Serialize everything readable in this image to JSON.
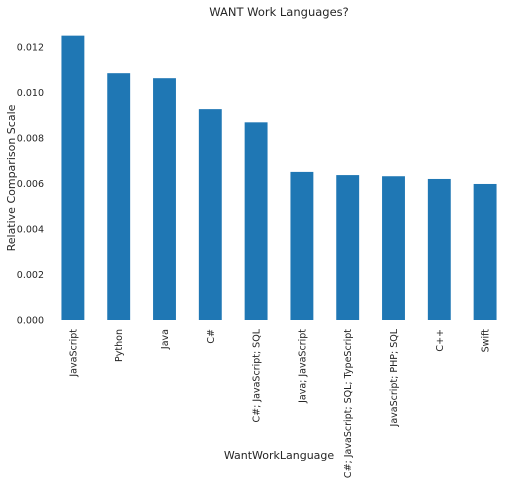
{
  "chart_data": {
    "type": "bar",
    "title": "WANT Work Languages?",
    "xlabel": "WantWorkLanguage",
    "ylabel": "Relative Comparison Scale",
    "ylim": [
      0,
      0.0131
    ],
    "yticks": [
      0.0,
      0.002,
      0.004,
      0.006,
      0.008,
      0.01,
      0.012
    ],
    "ytick_labels": [
      "0.000",
      "0.002",
      "0.004",
      "0.006",
      "0.008",
      "0.010",
      "0.012"
    ],
    "categories": [
      "JavaScript",
      "Python",
      "Java",
      "C#",
      "C#; JavaScript; SQL",
      "Java; JavaScript",
      "C#; JavaScript; SQL; TypeScript",
      "JavaScript; PHP; SQL",
      "C++",
      "Swift"
    ],
    "values": [
      0.0125,
      0.01085,
      0.01063,
      0.00927,
      0.00869,
      0.00651,
      0.00637,
      0.00632,
      0.0062,
      0.00598
    ],
    "grid": false,
    "legend": "none",
    "color": "#1f77b4"
  }
}
